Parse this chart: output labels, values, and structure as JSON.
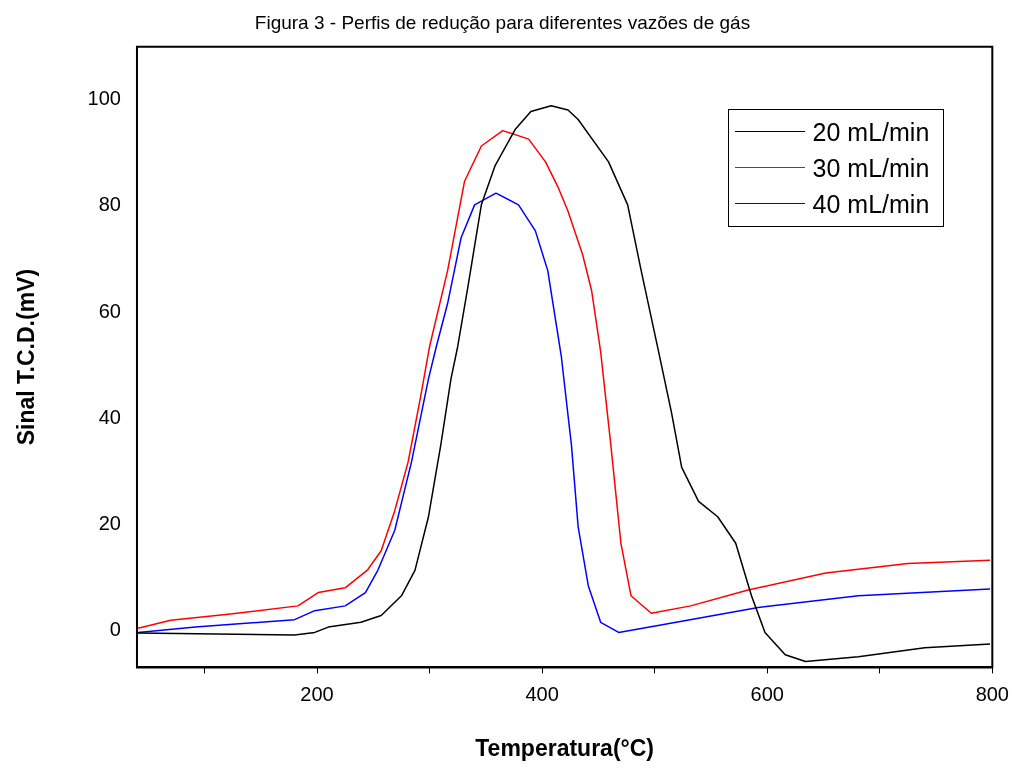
{
  "chart_data": {
    "type": "line",
    "title": "Figura 3 - Perfis de redução para diferentes vazões de gás",
    "xlabel": "Temperatura(°C)",
    "ylabel": "Sinal T.C.D.(mV)",
    "xlim": [
      40,
      800
    ],
    "ylim": [
      -7,
      110
    ],
    "xticks": [
      {
        "value": 100,
        "label": null
      },
      200,
      {
        "value": 300,
        "label": null
      },
      400,
      {
        "value": 500,
        "label": null
      },
      600,
      {
        "value": 700,
        "label": null
      },
      800
    ],
    "yticks": [
      0,
      20,
      40,
      60,
      80,
      100
    ],
    "grid": false,
    "legend": "top right",
    "marker": "none",
    "line_style": "solid",
    "series": [
      {
        "name": "20 mL/min",
        "color": "#000000",
        "x": [
          41,
          180,
          198,
          210,
          239,
          257,
          275,
          287,
          299,
          310,
          319,
          325,
          334,
          346,
          358,
          376,
          390,
          408,
          423,
          432,
          459,
          476,
          488,
          503,
          515,
          524,
          539,
          556,
          572,
          586,
          598,
          616,
          634,
          681,
          740,
          798
        ],
        "values": [
          -0.5,
          -0.9,
          -0.4,
          0.6,
          1.5,
          2.8,
          6.5,
          11.3,
          21.4,
          35,
          47.4,
          53.5,
          64.7,
          80.2,
          87.5,
          94.4,
          97.8,
          98.9,
          98.1,
          96.3,
          88.3,
          80.2,
          67.8,
          53,
          41,
          30.7,
          24.3,
          21.4,
          16.4,
          6.5,
          -0.4,
          -4.6,
          -5.9,
          -5,
          -3.3,
          -2.6
        ]
      },
      {
        "name": "30 mL/min",
        "color": "#ff0000",
        "x": [
          41,
          70,
          121,
          183,
          201,
          225,
          245,
          257,
          269,
          281,
          292,
          300,
          316,
          331,
          346,
          365,
          388,
          403,
          414,
          423,
          436,
          444,
          452,
          461,
          470,
          479,
          497,
          532,
          583,
          652,
          725,
          798
        ],
        "values": [
          0.4,
          1.9,
          3,
          4.6,
          7.1,
          8,
          11.4,
          15,
          22.5,
          31.8,
          44,
          53.5,
          67.8,
          84.6,
          91.3,
          94.2,
          92.6,
          88.3,
          83.6,
          79,
          70.8,
          64,
          52.5,
          35,
          16.4,
          6.5,
          3.2,
          4.6,
          7.6,
          10.8,
          12.6,
          13.2
        ]
      },
      {
        "name": "40 mL/min",
        "color": "#0000ff",
        "x": [
          41,
          92,
          180,
          198,
          225,
          243,
          254,
          269,
          284,
          299,
          306,
          316,
          328,
          340,
          359,
          379,
          394,
          405,
          417,
          423,
          426,
          432,
          441,
          452,
          468,
          503,
          592,
          681,
          798
        ],
        "values": [
          -0.4,
          0.6,
          2,
          3.7,
          4.6,
          7.1,
          11.3,
          18.8,
          31.8,
          47.4,
          53.5,
          61.6,
          74,
          80.2,
          82.4,
          80.2,
          75.3,
          67.8,
          51.7,
          40.5,
          35,
          19.5,
          8.4,
          1.5,
          -0.4,
          0.9,
          4.3,
          6.5,
          7.8
        ]
      }
    ]
  }
}
